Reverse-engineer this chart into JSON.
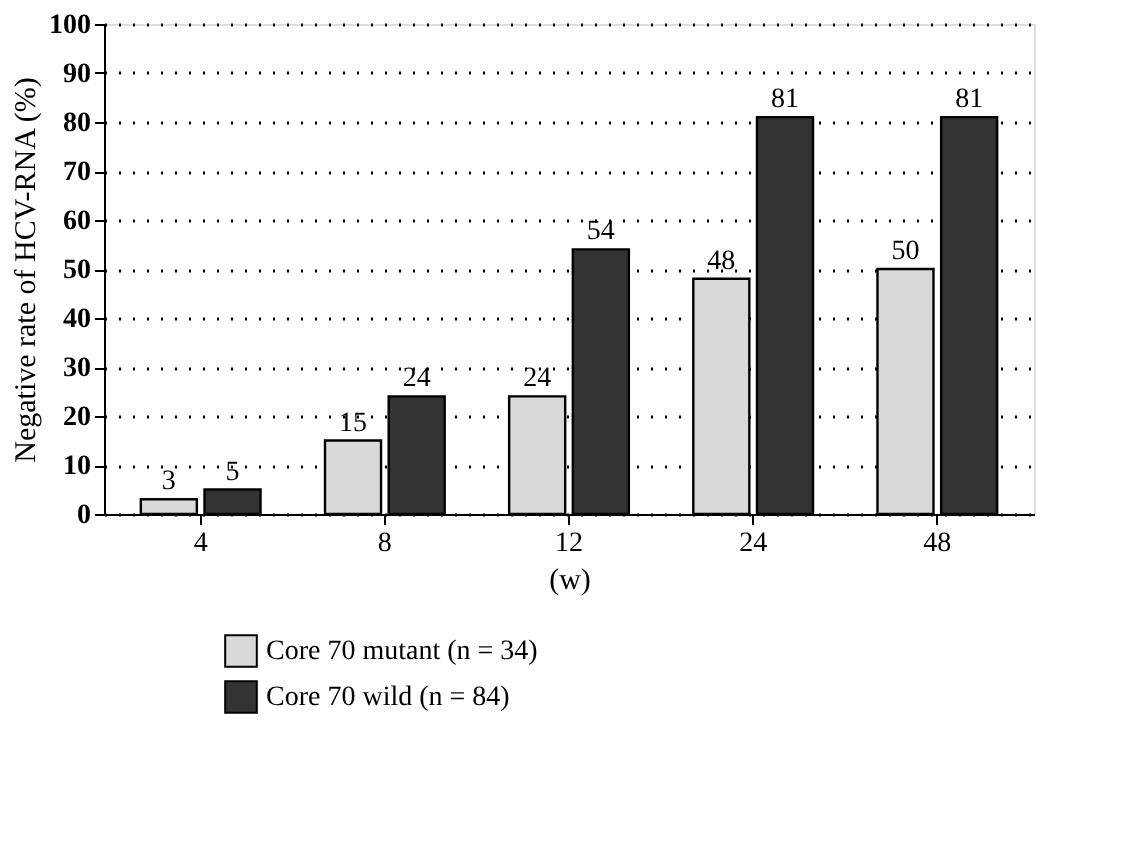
{
  "chart_data": {
    "type": "bar",
    "xlabel": "(w)",
    "ylabel": "Negative rate of HCV-RNA (%)",
    "categories": [
      "4",
      "8",
      "12",
      "24",
      "48"
    ],
    "series": [
      {
        "name": "Core 70 mutant (n = 34)",
        "color": "#d9d9d9",
        "values": [
          3,
          15,
          24,
          48,
          50
        ]
      },
      {
        "name": "Core 70 wild (n = 84)",
        "color": "#333333",
        "values": [
          5,
          24,
          54,
          81,
          81
        ]
      }
    ],
    "ylim": [
      0,
      100
    ],
    "yticks": [
      0,
      10,
      20,
      30,
      40,
      50,
      60,
      70,
      80,
      90,
      100
    ],
    "grid": "y",
    "legend": "bottom left",
    "data_labels": true
  }
}
